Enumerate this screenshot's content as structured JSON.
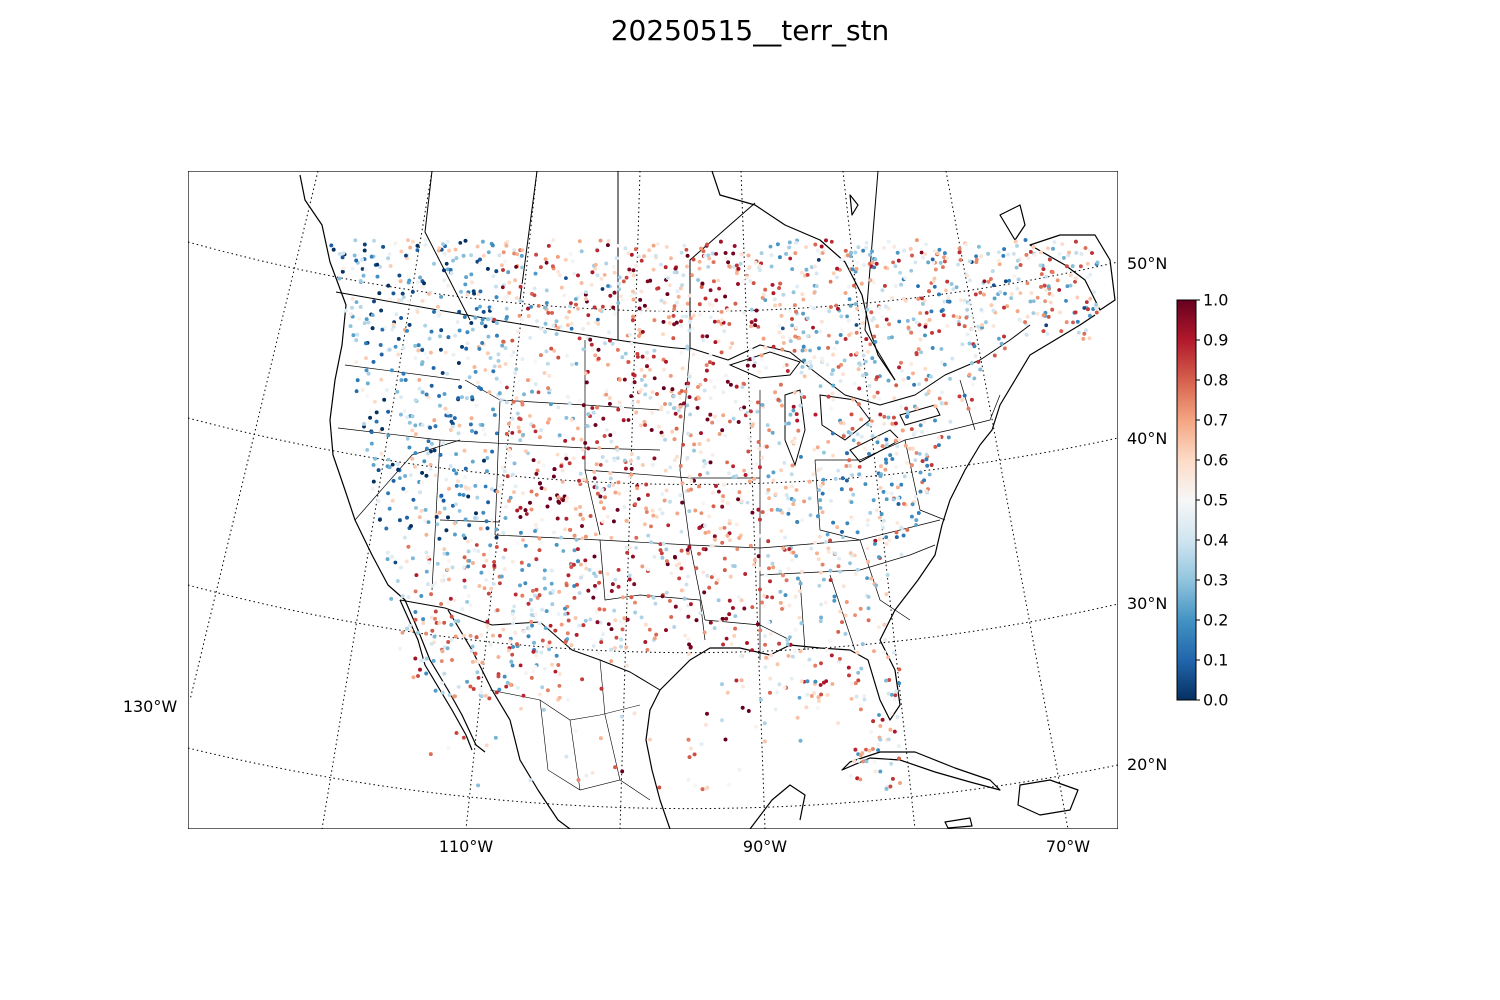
{
  "title": "20250515__terr_stn",
  "map": {
    "projection": "lambert-conformal",
    "lon_labels": [
      "130°W",
      "110°W",
      "90°W",
      "70°W"
    ],
    "lat_labels": [
      "20°N",
      "30°N",
      "40°N",
      "50°N"
    ],
    "gridline_style": "dotted",
    "basemap_features": [
      "coastlines",
      "country-borders",
      "state-borders"
    ]
  },
  "colorbar": {
    "colormap": "RdBu_r",
    "ticks": [
      "0.0",
      "0.1",
      "0.2",
      "0.3",
      "0.4",
      "0.5",
      "0.6",
      "0.7",
      "0.8",
      "0.9",
      "1.0"
    ],
    "range": [
      0.0,
      1.0
    ],
    "colors": [
      "#053061",
      "#2166ac",
      "#4393c3",
      "#92c5de",
      "#d1e5f0",
      "#f7f7f7",
      "#fddbc7",
      "#f4a582",
      "#d6604d",
      "#b2182b",
      "#67001f"
    ]
  },
  "scatter": {
    "marker": "small-dot",
    "value_range": [
      0.0,
      1.0
    ],
    "description_hint": "station points colored by value"
  }
}
